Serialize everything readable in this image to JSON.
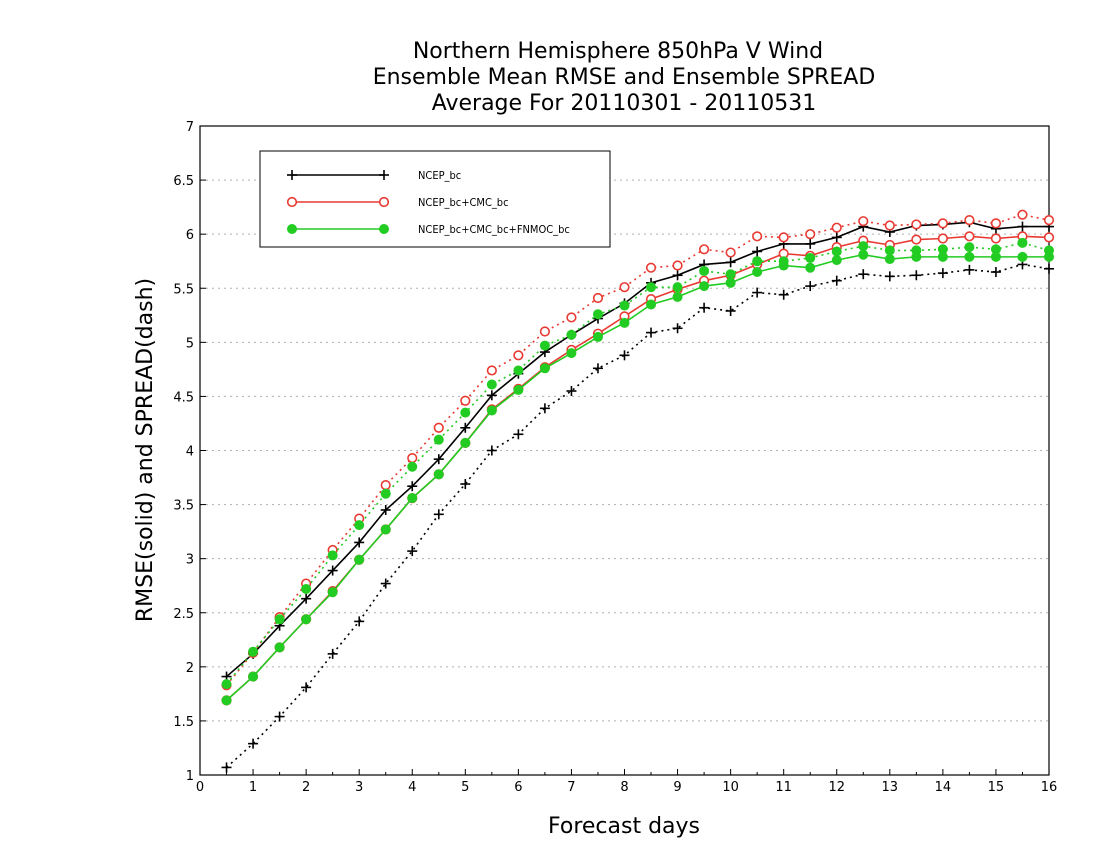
{
  "chart_data": {
    "type": "line",
    "title": [
      "Northern Hemisphere 850hPa V Wind",
      "Ensemble Mean RMSE and Ensemble SPREAD",
      "Average For 20110301 - 20110531"
    ],
    "xlabel": "Forecast days",
    "ylabel": "RMSE(solid) and SPREAD(dash)",
    "xlim": [
      0,
      16
    ],
    "ylim": [
      1,
      7
    ],
    "x_ticks": [
      0,
      1,
      2,
      3,
      4,
      5,
      6,
      7,
      8,
      9,
      10,
      11,
      12,
      13,
      14,
      15,
      16
    ],
    "y_ticks": [
      1,
      1.5,
      2,
      2.5,
      3,
      3.5,
      4,
      4.5,
      5,
      5.5,
      6,
      6.5,
      7
    ],
    "grid": "horizontal-dotted",
    "legend_position": "top-left",
    "x": [
      0.5,
      1,
      1.5,
      2,
      2.5,
      3,
      3.5,
      4,
      4.5,
      5,
      5.5,
      6,
      6.5,
      7,
      7.5,
      8,
      8.5,
      9,
      9.5,
      10,
      10.5,
      11,
      11.5,
      12,
      12.5,
      13,
      13.5,
      14,
      14.5,
      15,
      15.5,
      16
    ],
    "series": [
      {
        "name": "NCEP_bc",
        "color": "#000000",
        "marker": "plus",
        "rmse": [
          1.91,
          2.12,
          2.38,
          2.63,
          2.89,
          3.15,
          3.45,
          3.67,
          3.92,
          4.21,
          4.51,
          4.71,
          4.91,
          5.07,
          5.22,
          5.36,
          5.55,
          5.62,
          5.72,
          5.74,
          5.84,
          5.91,
          5.91,
          5.97,
          6.07,
          6.02,
          6.08,
          6.09,
          6.11,
          6.05,
          6.07,
          6.07
        ],
        "spread": [
          1.07,
          1.29,
          1.54,
          1.81,
          2.12,
          2.42,
          2.77,
          3.07,
          3.41,
          3.69,
          4.0,
          4.15,
          4.39,
          4.55,
          4.76,
          4.88,
          5.09,
          5.13,
          5.32,
          5.29,
          5.46,
          5.44,
          5.52,
          5.57,
          5.63,
          5.61,
          5.62,
          5.64,
          5.67,
          5.65,
          5.72,
          5.68
        ]
      },
      {
        "name": "NCEP_bc+CMC_bc",
        "color": "#e83a32",
        "marker": "circle-open",
        "rmse": [
          1.69,
          1.91,
          2.18,
          2.44,
          2.7,
          2.99,
          3.27,
          3.56,
          3.78,
          4.07,
          4.38,
          4.57,
          4.77,
          4.93,
          5.08,
          5.24,
          5.4,
          5.49,
          5.57,
          5.62,
          5.72,
          5.82,
          5.8,
          5.88,
          5.94,
          5.9,
          5.95,
          5.96,
          5.98,
          5.96,
          5.98,
          5.97
        ],
        "spread": [
          1.83,
          2.13,
          2.46,
          2.77,
          3.08,
          3.37,
          3.68,
          3.93,
          4.21,
          4.46,
          4.74,
          4.88,
          5.1,
          5.23,
          5.41,
          5.51,
          5.69,
          5.71,
          5.86,
          5.83,
          5.98,
          5.97,
          6.0,
          6.06,
          6.12,
          6.08,
          6.09,
          6.1,
          6.13,
          6.1,
          6.18,
          6.13
        ]
      },
      {
        "name": "NCEP_bc+CMC_bc+FNMOC_bc",
        "color": "#22cc22",
        "marker": "circle-filled",
        "rmse": [
          1.69,
          1.91,
          2.18,
          2.44,
          2.69,
          2.99,
          3.27,
          3.56,
          3.78,
          4.07,
          4.37,
          4.56,
          4.76,
          4.9,
          5.05,
          5.18,
          5.35,
          5.42,
          5.52,
          5.55,
          5.65,
          5.71,
          5.69,
          5.76,
          5.81,
          5.77,
          5.79,
          5.79,
          5.79,
          5.79,
          5.79,
          5.79
        ],
        "spread": [
          1.84,
          2.14,
          2.44,
          2.72,
          3.03,
          3.31,
          3.6,
          3.85,
          4.1,
          4.35,
          4.61,
          4.74,
          4.97,
          5.07,
          5.26,
          5.34,
          5.51,
          5.51,
          5.66,
          5.63,
          5.75,
          5.75,
          5.78,
          5.84,
          5.89,
          5.85,
          5.85,
          5.86,
          5.88,
          5.86,
          5.92,
          5.85
        ]
      }
    ]
  }
}
